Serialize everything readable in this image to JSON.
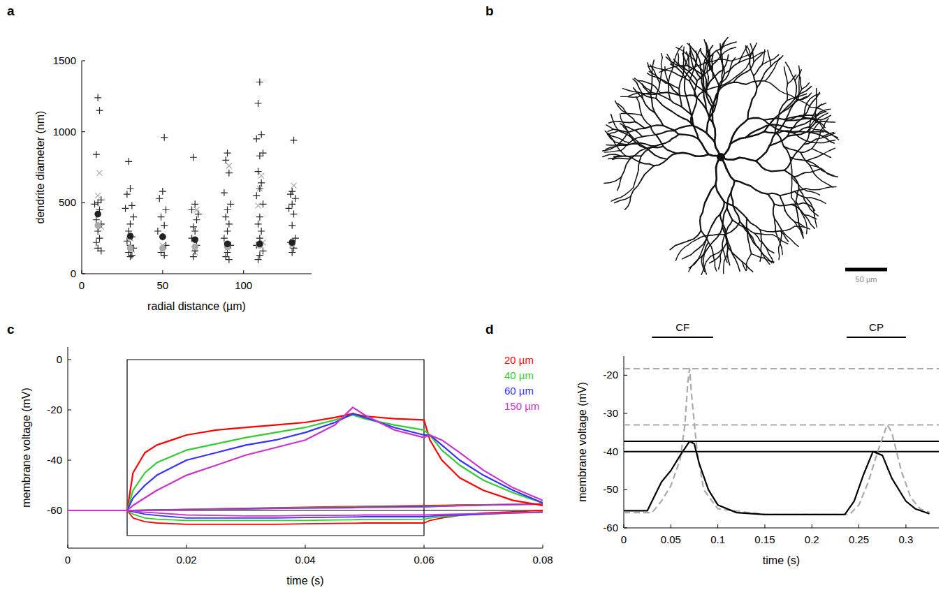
{
  "chart_data": [
    {
      "panel": "a",
      "type": "scatter",
      "x_label": "radial distance (µm)",
      "y_label": "dendrite diameter (nm)",
      "xlim": [
        0,
        142
      ],
      "xticks": [
        0,
        50,
        100
      ],
      "ylim": [
        0,
        1500
      ],
      "yticks": [
        0,
        500,
        1000,
        1500
      ],
      "series": [
        {
          "color": "#aaaaaa",
          "marker": "cross",
          "x": [
            11,
            10,
            12,
            30,
            31,
            50,
            71,
            70,
            91,
            90,
            111,
            110,
            109,
            112,
            131,
            130
          ],
          "values": [
            710,
            550,
            330,
            250,
            170,
            200,
            450,
            150,
            760,
            180,
            690,
            600,
            480,
            220,
            620,
            200
          ]
        },
        {
          "color": "#222222",
          "marker": "plus",
          "x": [
            10,
            11,
            9,
            12,
            10,
            8,
            11,
            9,
            12,
            10,
            11,
            9,
            10,
            12,
            29,
            30,
            28,
            31,
            27,
            32,
            30,
            29,
            31,
            28,
            30,
            32,
            29,
            31,
            30,
            51,
            50,
            48,
            52,
            49,
            51,
            47,
            50,
            52,
            49,
            51,
            69,
            70,
            68,
            72,
            71,
            69,
            70,
            68,
            71,
            70,
            69,
            90,
            89,
            91,
            88,
            92,
            90,
            89,
            91,
            90,
            88,
            92,
            90,
            89,
            91,
            110,
            109,
            111,
            108,
            112,
            110,
            109,
            111,
            110,
            108,
            112,
            110,
            109,
            111,
            110,
            108,
            112,
            110,
            109,
            131,
            130,
            129,
            132,
            130,
            128,
            131,
            130,
            132,
            129,
            131,
            130
          ],
          "values": [
            1240,
            1150,
            840,
            520,
            500,
            490,
            450,
            380,
            350,
            300,
            250,
            220,
            180,
            160,
            790,
            600,
            560,
            480,
            460,
            400,
            350,
            300,
            260,
            230,
            200,
            180,
            150,
            130,
            120,
            960,
            580,
            530,
            450,
            400,
            340,
            300,
            260,
            200,
            150,
            130,
            820,
            490,
            450,
            420,
            380,
            330,
            300,
            250,
            200,
            160,
            120,
            850,
            800,
            710,
            570,
            490,
            450,
            400,
            350,
            300,
            250,
            200,
            150,
            120,
            100,
            1350,
            1200,
            980,
            950,
            850,
            830,
            720,
            640,
            600,
            550,
            490,
            400,
            350,
            300,
            250,
            200,
            160,
            130,
            100,
            940,
            580,
            560,
            530,
            490,
            460,
            420,
            340,
            250,
            220,
            180,
            150
          ]
        },
        {
          "color": "#aaaaaa",
          "marker": "circle",
          "x": [
            10,
            30,
            50,
            70,
            90,
            110,
            130
          ],
          "values": [
            340,
            180,
            180,
            190,
            190,
            200,
            210
          ]
        },
        {
          "color": "#222222",
          "marker": "circle",
          "x": [
            10,
            30,
            50,
            70,
            90,
            110,
            130
          ],
          "values": [
            420,
            265,
            260,
            240,
            210,
            210,
            220
          ]
        }
      ]
    },
    {
      "panel": "c",
      "type": "line",
      "x_label": "time (s)",
      "y_label": "membrane voltage (mV)",
      "xlim": [
        0,
        0.08
      ],
      "xticks": [
        0,
        0.02,
        0.04,
        0.06,
        0.08
      ],
      "ylim": [
        -75,
        5
      ],
      "yticks": [
        -60,
        -40,
        -20,
        0
      ],
      "legend": "upper right",
      "stimulus": {
        "x": [
          0.01,
          0.06
        ],
        "y": [
          -70,
          0
        ]
      },
      "rest_potential": -60,
      "x": [
        0,
        0.01,
        0.011,
        0.013,
        0.015,
        0.02,
        0.025,
        0.03,
        0.035,
        0.04,
        0.045,
        0.048,
        0.05,
        0.055,
        0.06,
        0.061,
        0.063,
        0.066,
        0.07,
        0.075,
        0.08
      ],
      "series": [
        {
          "name": "20 µm",
          "color": "#ff0000",
          "values": [
            -60,
            -60,
            -45,
            -37,
            -34,
            -30,
            -28,
            -27,
            -26,
            -25,
            -23,
            -21.5,
            -22.5,
            -23.5,
            -24,
            -32,
            -40,
            -47,
            -52,
            -56,
            -58
          ],
          "hyper_values": [
            -60,
            -60,
            -63,
            -64.5,
            -65,
            -65.5,
            -65.5,
            -65.5,
            -65.5,
            -65.3,
            -65.2,
            -65.1,
            -65,
            -65,
            -65,
            -64,
            -63,
            -62,
            -61,
            -60.5,
            -60
          ],
          "small_values": [
            -60,
            -60,
            -59.9,
            -59.8,
            -59.7,
            -59.5,
            -59.3,
            -59.1,
            -58.9,
            -58.7,
            -58.5,
            -58.4,
            -58.3,
            -58.2,
            -58,
            -58,
            -57.9,
            -57.8,
            -57.7,
            -57.5,
            -57.3
          ]
        },
        {
          "name": "40 µm",
          "color": "#33cc33",
          "values": [
            -60,
            -60,
            -52,
            -45,
            -41,
            -36,
            -33.5,
            -31,
            -29,
            -27,
            -24,
            -22,
            -23.5,
            -26,
            -28,
            -30,
            -36,
            -42,
            -48,
            -53,
            -57
          ],
          "hyper_values": [
            -60,
            -60,
            -61.5,
            -63,
            -63.5,
            -64,
            -64,
            -64,
            -64,
            -64,
            -63.8,
            -63.7,
            -63.6,
            -63.6,
            -63.5,
            -63,
            -62.5,
            -62,
            -61.5,
            -61,
            -60.5
          ],
          "small_values": [
            -60,
            -60,
            -59.9,
            -59.8,
            -59.7,
            -59.6,
            -59.4,
            -59.2,
            -59,
            -58.8,
            -58.7,
            -58.6,
            -58.5,
            -58.4,
            -58.3,
            -58.2,
            -58.1,
            -58,
            -57.8,
            -57.6,
            -57.4
          ]
        },
        {
          "name": "60 µm",
          "color": "#3333ff",
          "values": [
            -60,
            -60,
            -55,
            -50,
            -46,
            -40,
            -37,
            -34,
            -32,
            -29,
            -25,
            -21.5,
            -23,
            -27,
            -30,
            -30,
            -34,
            -40,
            -46,
            -52,
            -57
          ],
          "hyper_values": [
            -60,
            -60,
            -60.5,
            -61.5,
            -62,
            -63,
            -63,
            -63,
            -63,
            -62.8,
            -62.7,
            -62.6,
            -62.5,
            -62.5,
            -62.5,
            -62.3,
            -62,
            -61.8,
            -61.5,
            -61,
            -60.7
          ],
          "small_values": [
            -60,
            -60,
            -60,
            -59.9,
            -59.8,
            -59.7,
            -59.5,
            -59.3,
            -59.2,
            -59,
            -58.9,
            -58.8,
            -58.7,
            -58.6,
            -58.5,
            -58.4,
            -58.3,
            -58.1,
            -57.9,
            -57.7,
            -57.5
          ]
        },
        {
          "name": "150 µm",
          "color": "#cc33cc",
          "values": [
            -60,
            -60,
            -58,
            -55,
            -52,
            -46,
            -42,
            -38,
            -35,
            -32,
            -26,
            -19,
            -22,
            -28,
            -31,
            -30,
            -32,
            -37,
            -44,
            -51,
            -56
          ],
          "hyper_values": [
            -60,
            -60,
            -60.2,
            -60.7,
            -61,
            -61.8,
            -62,
            -62.2,
            -62.2,
            -62,
            -62,
            -61.9,
            -61.8,
            -61.8,
            -61.8,
            -61.7,
            -61.6,
            -61.4,
            -61.2,
            -61,
            -60.8
          ],
          "small_values": [
            -60,
            -60,
            -60,
            -60,
            -59.9,
            -59.8,
            -59.6,
            -59.5,
            -59.3,
            -59.2,
            -59.1,
            -59,
            -58.9,
            -58.8,
            -58.7,
            -58.6,
            -58.4,
            -58.2,
            -58,
            -57.8,
            -57.6
          ]
        }
      ]
    },
    {
      "panel": "d",
      "type": "line",
      "x_label": "time (s)",
      "y_label": "membrane voltage (mV)",
      "xlim": [
        0,
        0.335
      ],
      "xticks": [
        0,
        0.05,
        0.1,
        0.15,
        0.2,
        0.25,
        0.3
      ],
      "ylim": [
        -60,
        -15
      ],
      "yticks": [
        -60,
        -50,
        -40,
        -30,
        -20
      ],
      "series": [
        {
          "color": "#aaaaaa",
          "line_style": "dashed",
          "x": [
            0,
            0.03,
            0.04,
            0.05,
            0.06,
            0.065,
            0.068,
            0.07,
            0.072,
            0.078,
            0.085,
            0.1,
            0.15,
            0.24,
            0.25,
            0.26,
            0.27,
            0.28,
            0.285,
            0.295,
            0.305,
            0.315,
            0.325
          ],
          "values": [
            -56,
            -56,
            -53,
            -49,
            -42,
            -33,
            -22,
            -18.3,
            -25,
            -40,
            -50,
            -55,
            -56.5,
            -56.5,
            -54,
            -48,
            -40,
            -33,
            -35,
            -45,
            -52,
            -55,
            -56
          ]
        },
        {
          "color": "#000000",
          "line_style": "solid",
          "x": [
            0,
            0.025,
            0.03,
            0.04,
            0.05,
            0.06,
            0.07,
            0.075,
            0.08,
            0.09,
            0.1,
            0.12,
            0.15,
            0.2,
            0.235,
            0.245,
            0.255,
            0.265,
            0.275,
            0.285,
            0.3,
            0.31,
            0.325
          ],
          "values": [
            -55.5,
            -55.5,
            -53,
            -48,
            -45,
            -41,
            -37.3,
            -38,
            -43,
            -50,
            -54,
            -56,
            -56.5,
            -56.5,
            -56.5,
            -53,
            -46,
            -40,
            -41,
            -47,
            -53,
            -55,
            -56.3
          ]
        }
      ],
      "hlines": [
        {
          "value": -18.3,
          "color": "#aaaaaa",
          "line_style": "dashed"
        },
        {
          "value": -33,
          "color": "#aaaaaa",
          "line_style": "dashed"
        },
        {
          "value": -37.3,
          "color": "#000000",
          "line_style": "solid"
        },
        {
          "value": -40,
          "color": "#000000",
          "line_style": "solid"
        }
      ],
      "annotations": [
        {
          "label": "CF",
          "start": 0.03,
          "end": 0.095
        },
        {
          "label": "CP",
          "start": 0.237,
          "end": 0.3
        }
      ]
    }
  ],
  "neuron_image": {
    "panel": "b",
    "scale_bar": "50 µm"
  }
}
